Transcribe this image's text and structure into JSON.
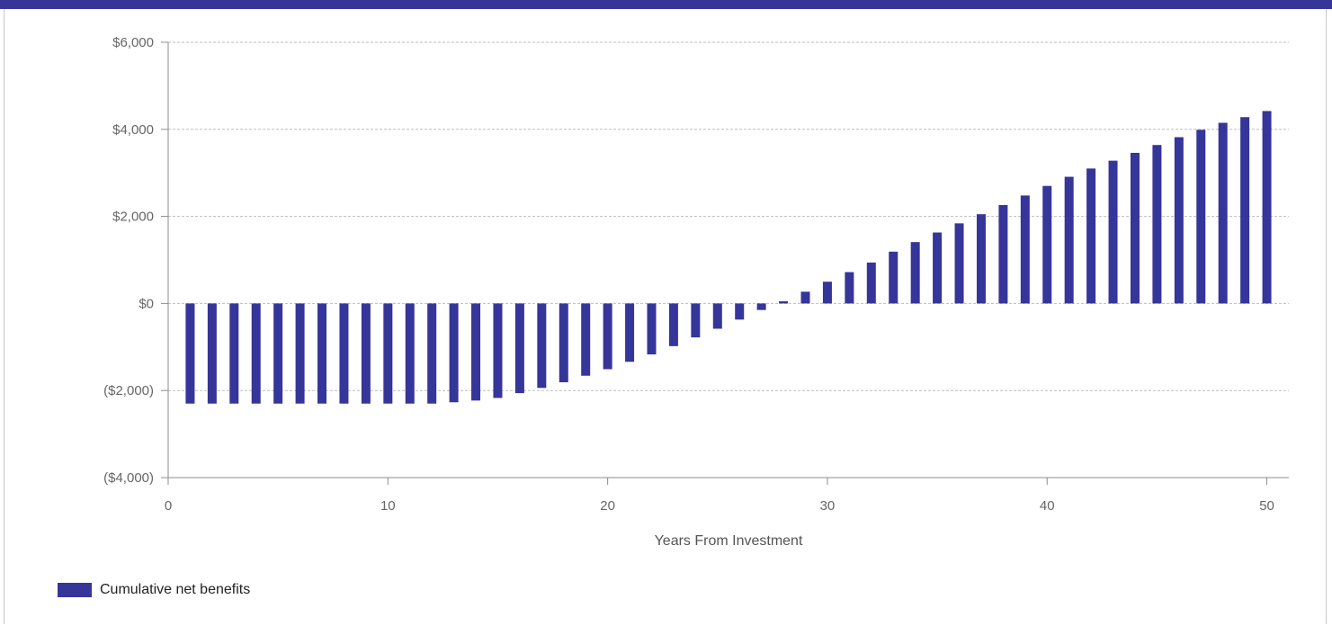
{
  "colors": {
    "header": "#35359a",
    "bar": "#35359a",
    "grid": "#bdbdbd",
    "axis": "#8c8c8c"
  },
  "chart_data": {
    "type": "bar",
    "title": "",
    "xlabel": "Years From Investment",
    "ylabel": "",
    "xlim": [
      0,
      51
    ],
    "ylim": [
      -4000,
      6000
    ],
    "x_ticks": [
      0,
      10,
      20,
      30,
      40,
      50
    ],
    "y_ticks": [
      -4000,
      -2000,
      0,
      2000,
      4000,
      6000
    ],
    "y_tick_labels": [
      "($4,000)",
      "($2,000)",
      "$0",
      "$2,000",
      "$4,000",
      "$6,000"
    ],
    "grid": true,
    "legend_position": "bottom-left",
    "series": [
      {
        "name": "Cumulative net benefits",
        "x": [
          1,
          2,
          3,
          4,
          5,
          6,
          7,
          8,
          9,
          10,
          11,
          12,
          13,
          14,
          15,
          16,
          17,
          18,
          19,
          20,
          21,
          22,
          23,
          24,
          25,
          26,
          27,
          28,
          29,
          30,
          31,
          32,
          33,
          34,
          35,
          36,
          37,
          38,
          39,
          40,
          41,
          42,
          43,
          44,
          45,
          46,
          47,
          48,
          49,
          50
        ],
        "values": [
          -2300,
          -2300,
          -2300,
          -2300,
          -2300,
          -2300,
          -2300,
          -2300,
          -2300,
          -2300,
          -2300,
          -2300,
          -2270,
          -2230,
          -2170,
          -2060,
          -1940,
          -1810,
          -1660,
          -1510,
          -1340,
          -1170,
          -980,
          -780,
          -580,
          -370,
          -150,
          50,
          270,
          500,
          720,
          940,
          1190,
          1410,
          1630,
          1840,
          2050,
          2260,
          2480,
          2700,
          2910,
          3100,
          3280,
          3460,
          3640,
          3820,
          3990,
          4150,
          4280,
          4420
        ]
      }
    ]
  }
}
